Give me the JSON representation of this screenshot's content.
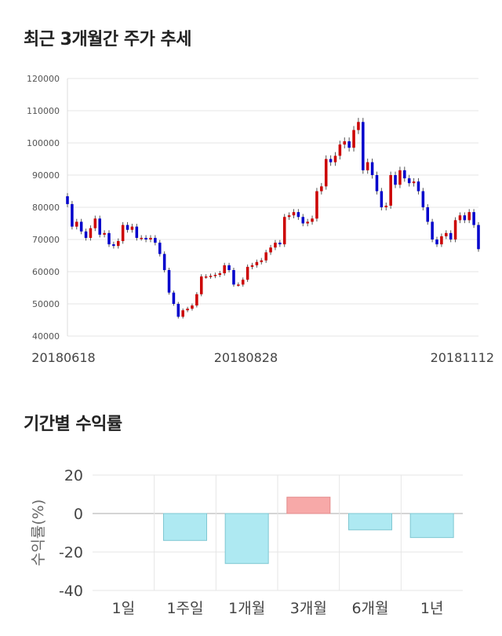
{
  "sections": {
    "price_trend_title": "최근 3개월간 주가 추세",
    "returns_title": "기간별 수익률"
  },
  "chart_data": [
    {
      "type": "candlestick",
      "title": "최근 3개월간 주가 추세",
      "ylim": [
        40000,
        120000
      ],
      "y_ticks": [
        "120000",
        "110000",
        "100000",
        "90000",
        "80000",
        "70000",
        "60000",
        "50000",
        "40000"
      ],
      "x_ticks": [
        "20180618",
        "20180828",
        "20181112"
      ],
      "grid": true,
      "colors": {
        "up": "#cc0000",
        "down": "#0000cc",
        "wick": "#555555"
      },
      "closes": [
        81000,
        74000,
        75500,
        72500,
        70500,
        73500,
        76500,
        71500,
        72000,
        68500,
        68000,
        69500,
        74500,
        73000,
        74000,
        70500,
        70500,
        70000,
        70500,
        69000,
        65500,
        60500,
        53500,
        50000,
        46000,
        48000,
        48500,
        49500,
        53000,
        58500,
        58500,
        58700,
        59000,
        59500,
        62000,
        60500,
        56000,
        56000,
        57500,
        61500,
        62000,
        63000,
        63500,
        66000,
        67500,
        69000,
        68500,
        77000,
        77500,
        78500,
        77000,
        75000,
        75500,
        76500,
        85000,
        86500,
        95000,
        94000,
        96000,
        99500,
        100500,
        98500,
        104000,
        106500,
        91500,
        94000,
        90000,
        85000,
        80000,
        80500,
        90000,
        87000,
        91500,
        89000,
        87500,
        88000,
        85000,
        80000,
        75500,
        70000,
        68500,
        71000,
        72000,
        70000,
        76000,
        77500,
        76000,
        78500,
        74500,
        67000
      ]
    },
    {
      "type": "bar",
      "title": "기간별 수익률",
      "categories": [
        "1일",
        "1주일",
        "1개월",
        "3개월",
        "6개월",
        "1년"
      ],
      "values": [
        0,
        -14,
        -26,
        8.5,
        -8.5,
        -12.5
      ],
      "ylabel": "수익률(%)",
      "ylim": [
        -40,
        20
      ],
      "y_ticks": [
        "20",
        "0",
        "-20",
        "-40"
      ],
      "grid": true,
      "colors": {
        "positive": "#f7a9a8",
        "negative": "#aee9f2",
        "negative_stroke": "#7fc7d2",
        "positive_stroke": "#e38b8b"
      }
    }
  ]
}
